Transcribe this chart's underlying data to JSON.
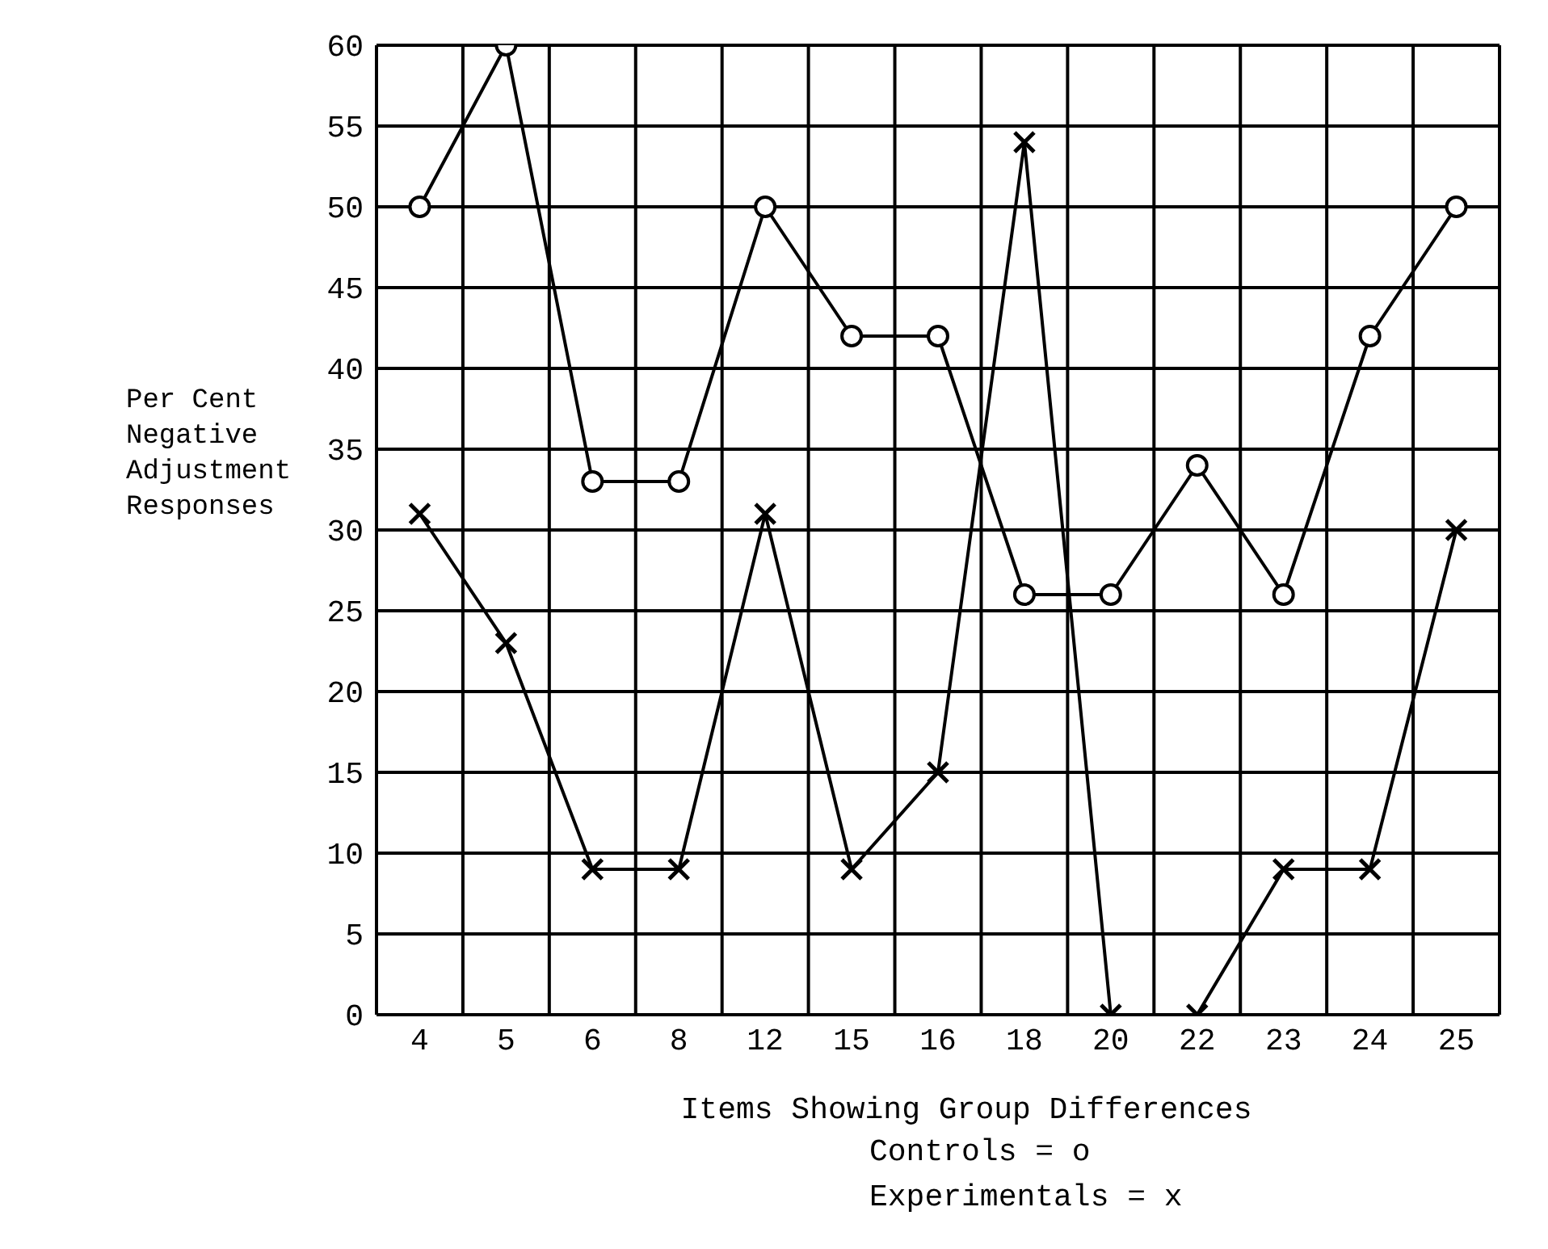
{
  "chart_data": {
    "type": "line",
    "xlabel": "Items Showing Group Differences",
    "ylabel": "Per Cent Negative Adjustment Responses",
    "categories": [
      "4",
      "5",
      "6",
      "8",
      "12",
      "15",
      "16",
      "18",
      "20",
      "22",
      "23",
      "24",
      "25"
    ],
    "series": [
      {
        "color": "#000000",
        "marker": "circle",
        "values": [
          50,
          60,
          33,
          33,
          50,
          42,
          42,
          26,
          26,
          34,
          26,
          42,
          50
        ]
      },
      {
        "color": "#000000",
        "marker": "cross",
        "values": [
          31,
          23,
          9,
          9,
          31,
          9,
          15,
          54,
          0,
          0,
          9,
          9,
          30
        ]
      }
    ],
    "ylim": [
      0,
      60
    ],
    "yticks": [
      0,
      5,
      10,
      15,
      20,
      25,
      30,
      35,
      40,
      45,
      50,
      55,
      60
    ],
    "grid": true,
    "annotations": [
      "Controls = o",
      "Experimentals = x"
    ]
  }
}
